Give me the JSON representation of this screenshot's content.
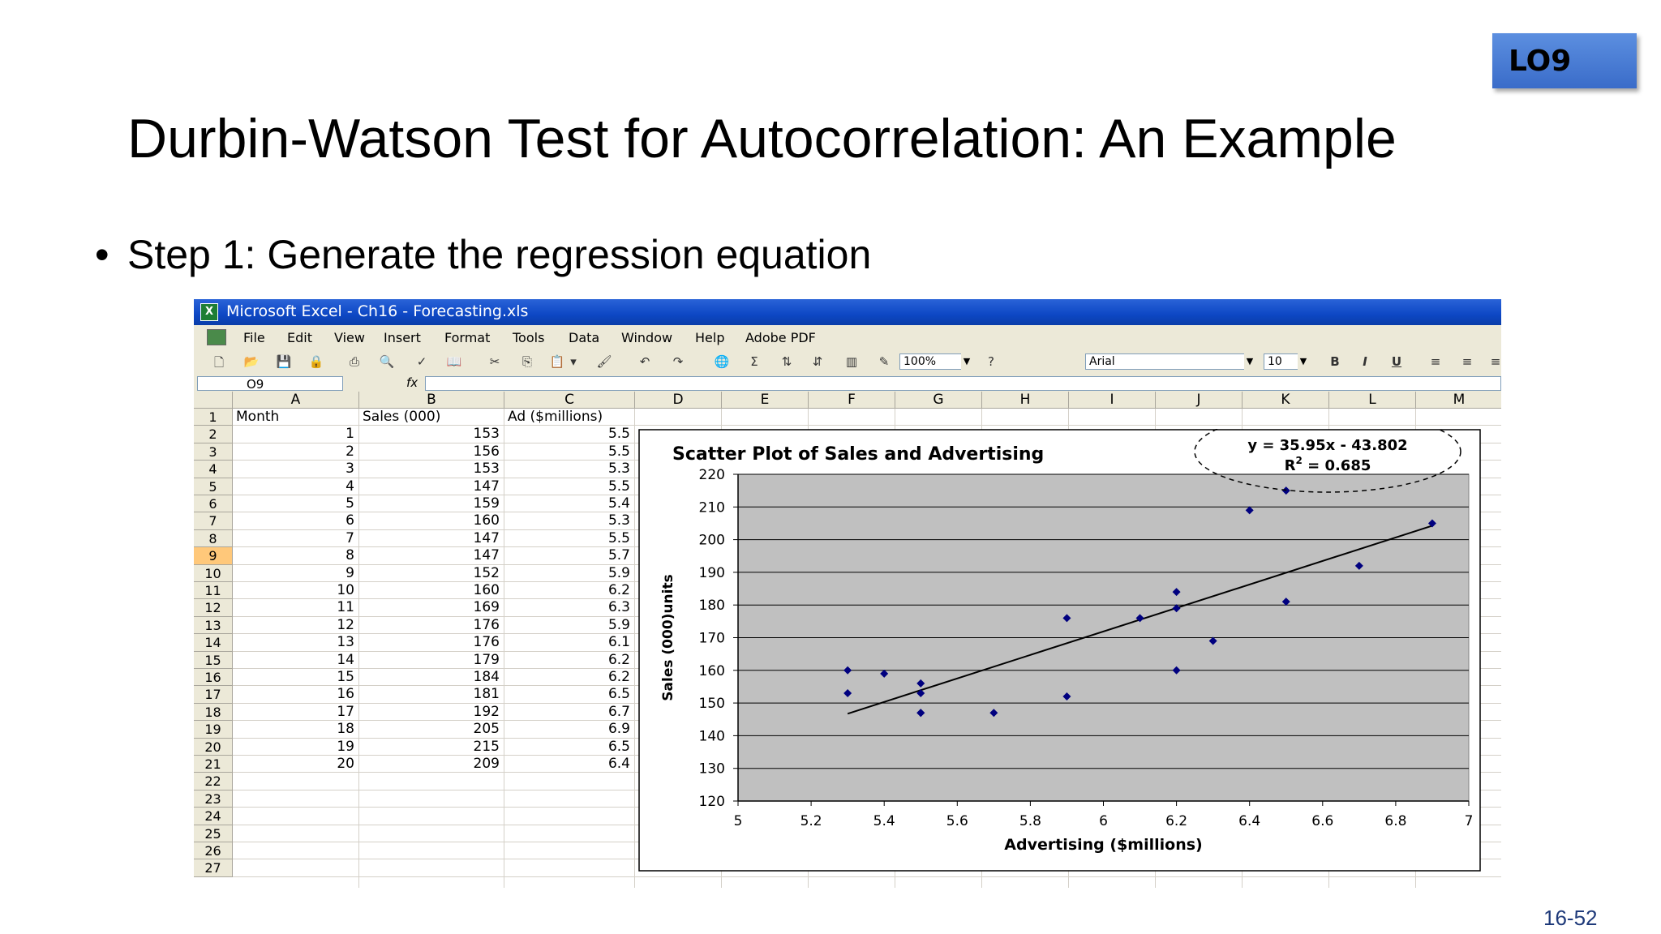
{
  "slide": {
    "badge": "LO9",
    "title": "Durbin-Watson Test for Autocorrelation: An Example",
    "bullet": "Step 1: Generate the regression equation",
    "page_number": "16-52"
  },
  "excel": {
    "window_title": "Microsoft Excel - Ch16 - Forecasting.xls",
    "menu": [
      "File",
      "Edit",
      "View",
      "Insert",
      "Format",
      "Tools",
      "Data",
      "Window",
      "Help",
      "Adobe PDF"
    ],
    "zoom": "100%",
    "font_name": "Arial",
    "font_size": "10",
    "name_box": "O9",
    "fx_label": "fx",
    "columns": [
      "A",
      "B",
      "C",
      "D",
      "E",
      "F",
      "G",
      "H",
      "I",
      "J",
      "K",
      "L",
      "M"
    ],
    "rows": [
      "1",
      "2",
      "3",
      "4",
      "5",
      "6",
      "7",
      "8",
      "9",
      "10",
      "11",
      "12",
      "13",
      "14",
      "15",
      "16",
      "17",
      "18",
      "19",
      "20",
      "21",
      "22",
      "23",
      "24",
      "25",
      "26",
      "27"
    ],
    "selected_row": "9",
    "headers": [
      "Month",
      "Sales (000)",
      "Ad ($millions)"
    ],
    "table": [
      [
        "1",
        "153",
        "5.5"
      ],
      [
        "2",
        "156",
        "5.5"
      ],
      [
        "3",
        "153",
        "5.3"
      ],
      [
        "4",
        "147",
        "5.5"
      ],
      [
        "5",
        "159",
        "5.4"
      ],
      [
        "6",
        "160",
        "5.3"
      ],
      [
        "7",
        "147",
        "5.5"
      ],
      [
        "8",
        "147",
        "5.7"
      ],
      [
        "9",
        "152",
        "5.9"
      ],
      [
        "10",
        "160",
        "6.2"
      ],
      [
        "11",
        "169",
        "6.3"
      ],
      [
        "12",
        "176",
        "5.9"
      ],
      [
        "13",
        "176",
        "6.1"
      ],
      [
        "14",
        "179",
        "6.2"
      ],
      [
        "15",
        "184",
        "6.2"
      ],
      [
        "16",
        "181",
        "6.5"
      ],
      [
        "17",
        "192",
        "6.7"
      ],
      [
        "18",
        "205",
        "6.9"
      ],
      [
        "19",
        "215",
        "6.5"
      ],
      [
        "20",
        "209",
        "6.4"
      ]
    ]
  },
  "chart_data": {
    "type": "scatter",
    "title": "Scatter Plot of Sales and Advertising",
    "xlabel": "Advertising ($millions)",
    "ylabel": "Sales (000)units",
    "xlim": [
      5,
      7
    ],
    "ylim": [
      120,
      220
    ],
    "x_ticks": [
      "5",
      "5.2",
      "5.4",
      "5.6",
      "5.8",
      "6",
      "6.2",
      "6.4",
      "6.6",
      "6.8",
      "7"
    ],
    "y_ticks": [
      "120",
      "130",
      "140",
      "150",
      "160",
      "170",
      "180",
      "190",
      "200",
      "210",
      "220"
    ],
    "grid": "horizontal",
    "points": [
      {
        "x": 5.5,
        "y": 153
      },
      {
        "x": 5.5,
        "y": 156
      },
      {
        "x": 5.3,
        "y": 153
      },
      {
        "x": 5.5,
        "y": 147
      },
      {
        "x": 5.4,
        "y": 159
      },
      {
        "x": 5.3,
        "y": 160
      },
      {
        "x": 5.5,
        "y": 147
      },
      {
        "x": 5.7,
        "y": 147
      },
      {
        "x": 5.9,
        "y": 152
      },
      {
        "x": 6.2,
        "y": 160
      },
      {
        "x": 6.3,
        "y": 169
      },
      {
        "x": 5.9,
        "y": 176
      },
      {
        "x": 6.1,
        "y": 176
      },
      {
        "x": 6.2,
        "y": 179
      },
      {
        "x": 6.2,
        "y": 184
      },
      {
        "x": 6.5,
        "y": 181
      },
      {
        "x": 6.7,
        "y": 192
      },
      {
        "x": 6.9,
        "y": 205
      },
      {
        "x": 6.5,
        "y": 215
      },
      {
        "x": 6.4,
        "y": 209
      }
    ],
    "trendline": {
      "slope": 35.95,
      "intercept": -43.802,
      "x_from": 5.3,
      "x_to": 6.9
    },
    "equation": "y = 35.95x - 43.802",
    "r2_label": "R",
    "r2_sup": "2",
    "r2_value": " = 0.685",
    "colors": {
      "plot_bg": "#c0c0c0",
      "marker": "#00007f",
      "line": "#000000"
    }
  }
}
